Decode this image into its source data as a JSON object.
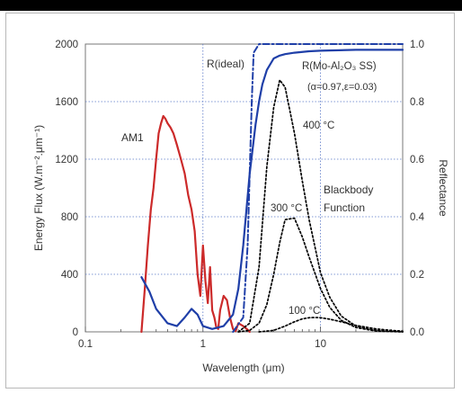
{
  "chart_data": {
    "type": "line",
    "xlabel": "Wavelength (μm)",
    "xscale": "log",
    "xlim": [
      0.1,
      50
    ],
    "xticks": [
      "0.1",
      "1",
      "10"
    ],
    "xtick_values": [
      0.1,
      1,
      10
    ],
    "ylabel_left": "Energy Flux (W.m⁻².μm⁻¹)",
    "ylim_left": [
      0,
      2000
    ],
    "yticks_left": [
      "0",
      "400",
      "800",
      "1200",
      "1600",
      "2000"
    ],
    "yticks_left_values": [
      0,
      400,
      800,
      1200,
      1600,
      2000
    ],
    "ylabel_right": "Reflectance",
    "ylim_right": [
      0,
      1
    ],
    "yticks_right": [
      "0.0",
      "0.2",
      "0.4",
      "0.6",
      "0.8",
      "1.0"
    ],
    "yticks_right_values": [
      0,
      0.2,
      0.4,
      0.6,
      0.8,
      1.0
    ],
    "grid": true,
    "annotations": {
      "am1": "AM1",
      "r_ideal": "R(ideal)",
      "r_real": "R(Mo-Al₂O₃ SS)",
      "r_real_params": "(α=0.97,ε=0.03)",
      "t400": "400 °C",
      "t300": "300 °C",
      "t100": "100 °C",
      "blackbody": "Blackbody",
      "function": "Function"
    },
    "colors": {
      "am1": "#cc2a2a",
      "reflectance": "#1f3fa8",
      "grid": "#5a78c8",
      "blackbody": "#000000",
      "text": "#333333"
    },
    "series": [
      {
        "axis": "left",
        "style": "solid",
        "x": [
          0.3,
          0.32,
          0.34,
          0.36,
          0.38,
          0.4,
          0.42,
          0.44,
          0.46,
          0.48,
          0.5,
          0.53,
          0.56,
          0.6,
          0.65,
          0.7,
          0.75,
          0.8,
          0.85,
          0.9,
          0.95,
          1.0,
          1.05,
          1.1,
          1.15,
          1.2,
          1.25,
          1.3,
          1.35,
          1.4,
          1.5,
          1.6,
          1.7,
          1.8,
          1.9,
          2.0,
          2.2,
          2.4,
          2.5
        ],
        "values": [
          0,
          300,
          600,
          850,
          1000,
          1200,
          1380,
          1450,
          1500,
          1480,
          1450,
          1420,
          1380,
          1300,
          1200,
          1100,
          950,
          850,
          700,
          400,
          250,
          600,
          350,
          200,
          450,
          150,
          100,
          30,
          20,
          150,
          250,
          220,
          100,
          20,
          5,
          60,
          40,
          15,
          0
        ]
      },
      {
        "axis": "right",
        "style": "solid",
        "x": [
          0.3,
          0.35,
          0.4,
          0.5,
          0.6,
          0.7,
          0.8,
          0.9,
          1.0,
          1.2,
          1.5,
          1.8,
          2.0,
          2.2,
          2.5,
          2.8,
          3.0,
          3.2,
          3.5,
          4.0,
          4.5,
          5.0,
          6.0,
          8.0,
          10.0,
          20.0,
          50.0
        ],
        "values": [
          0.19,
          0.14,
          0.08,
          0.03,
          0.02,
          0.05,
          0.08,
          0.06,
          0.02,
          0.01,
          0.02,
          0.06,
          0.15,
          0.3,
          0.55,
          0.72,
          0.8,
          0.86,
          0.91,
          0.95,
          0.96,
          0.965,
          0.97,
          0.975,
          0.977,
          0.98,
          0.98
        ]
      },
      {
        "axis": "right",
        "style": "dash-dot",
        "x": [
          1.8,
          2.2,
          2.4,
          2.6,
          2.7,
          3.0,
          4.0,
          10.0,
          50.0
        ],
        "values": [
          0.0,
          0.05,
          0.3,
          0.8,
          0.97,
          1.0,
          1.0,
          1.0,
          1.0
        ]
      },
      {
        "axis": "left",
        "style": "dotted",
        "x": [
          2.0,
          2.5,
          3.0,
          3.5,
          4.0,
          4.5,
          5.0,
          6.0,
          7.0,
          8.0,
          10.0,
          12.0,
          15.0,
          20.0,
          30.0,
          50.0
        ],
        "values": [
          0,
          60,
          450,
          1150,
          1560,
          1750,
          1700,
          1380,
          1050,
          780,
          410,
          240,
          110,
          40,
          10,
          0
        ]
      },
      {
        "axis": "left",
        "style": "dotted",
        "x": [
          2.0,
          2.5,
          3.0,
          3.5,
          4.0,
          4.5,
          5.0,
          6.0,
          7.0,
          8.0,
          10.0,
          12.0,
          15.0,
          20.0,
          30.0,
          50.0
        ],
        "values": [
          0,
          10,
          60,
          190,
          400,
          620,
          780,
          790,
          660,
          520,
          300,
          170,
          80,
          30,
          5,
          0
        ]
      },
      {
        "axis": "left",
        "style": "dotted",
        "x": [
          3.0,
          4.0,
          5.0,
          6.0,
          7.0,
          8.0,
          9.0,
          10.0,
          12.0,
          15.0,
          20.0,
          30.0,
          40.0,
          50.0
        ],
        "values": [
          0,
          10,
          40,
          70,
          90,
          98,
          100,
          98,
          88,
          70,
          45,
          20,
          10,
          5
        ]
      }
    ]
  }
}
